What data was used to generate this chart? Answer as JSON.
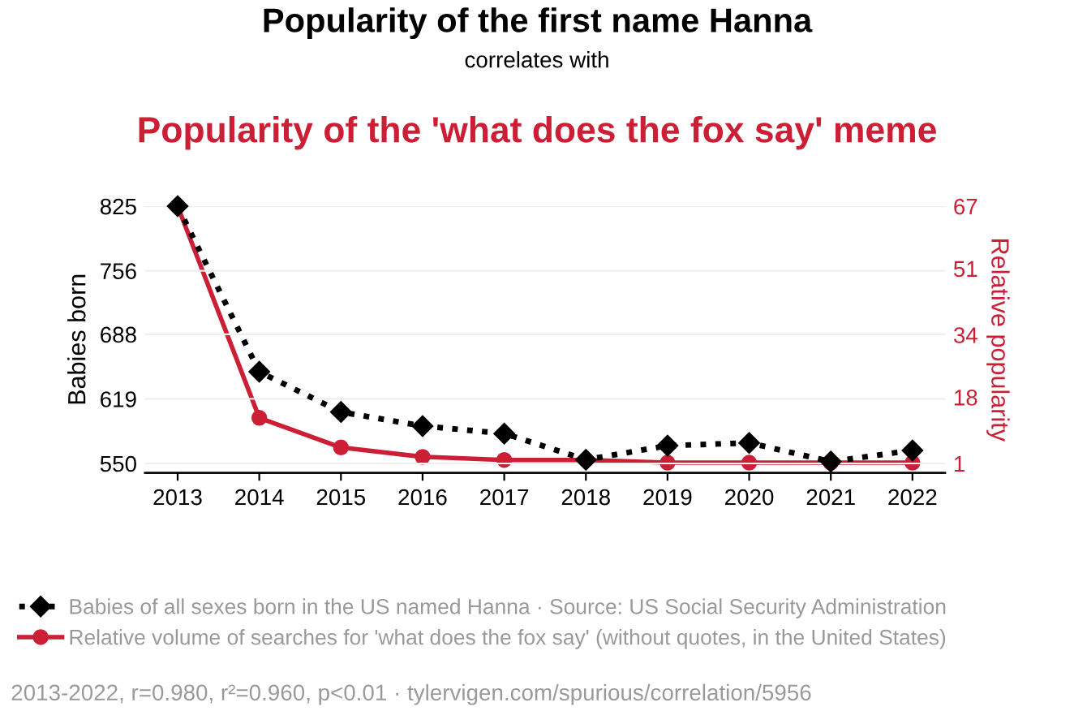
{
  "chart_data": {
    "type": "line",
    "title": "Popularity of the first name Hanna",
    "subtitle": "correlates with",
    "annotations": [
      "Popularity of the 'what does the fox say' meme",
      "2013-2022, r=0.980, r²=0.960, p<0.01 · tylervigen.com/spurious/correlation/5956"
    ],
    "categories": [
      "2013",
      "2014",
      "2015",
      "2016",
      "2017",
      "2018",
      "2019",
      "2020",
      "2021",
      "2022"
    ],
    "ylabel": "Babies born",
    "y2label": "Relative popularity",
    "ylim": [
      540,
      825
    ],
    "yticks": [
      550,
      619,
      688,
      756,
      825
    ],
    "y2lim": [
      -1.4,
      67
    ],
    "y2ticks": [
      1,
      18,
      34,
      51,
      67
    ],
    "grid": "y",
    "legend": "bottom",
    "series": [
      {
        "name": "Babies of all sexes born in the US named Hanna · Source: US Social Security Administration",
        "color": "#000000",
        "values": [
          825,
          648,
          605,
          590,
          582,
          554,
          569,
          572,
          552,
          564
        ],
        "marker": "diamond",
        "line_style": "dotted"
      },
      {
        "name": "Relative volume of searches for 'what does the fox say' (without quotes, in the United States)",
        "color": "#cc1f36",
        "values": [
          67,
          12.7,
          5.1,
          2.7,
          1.9,
          1.9,
          1.2,
          1.2,
          1.2,
          1.2
        ],
        "marker": "circle",
        "line_style": "solid",
        "axis": "y2"
      }
    ]
  }
}
